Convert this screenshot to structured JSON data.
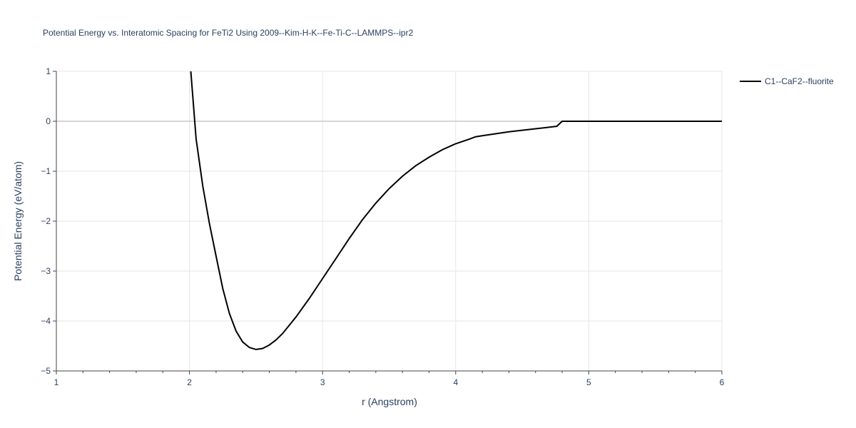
{
  "chart_data": {
    "type": "line",
    "title": "Potential Energy vs. Interatomic Spacing for FeTi2 Using 2009--Kim-H-K--Fe-Ti-C--LAMMPS--ipr2",
    "xlabel": "r (Angstrom)",
    "ylabel": "Potential Energy (eV/atom)",
    "xlim": [
      1,
      6
    ],
    "ylim": [
      -5,
      1
    ],
    "x_ticks": [
      1,
      2,
      3,
      4,
      5,
      6
    ],
    "x_tick_labels": [
      "1",
      "2",
      "3",
      "4",
      "5",
      "6"
    ],
    "x_minor_ticks": [
      1.2,
      1.4,
      1.6,
      1.8,
      2.2,
      2.4,
      2.6,
      2.8,
      3.2,
      3.4,
      3.6,
      3.8,
      4.2,
      4.4,
      4.6,
      4.8,
      5.2,
      5.4,
      5.6,
      5.8
    ],
    "y_ticks": [
      -5,
      -4,
      -3,
      -2,
      -1,
      0,
      1
    ],
    "y_tick_labels": [
      "−5",
      "−4",
      "−3",
      "−2",
      "−1",
      "0",
      "1"
    ],
    "grid": true,
    "legend_position": "top-right",
    "series": [
      {
        "name": "C1--CaF2--fluorite",
        "color": "#000000",
        "x": [
          2.01,
          2.05,
          2.1,
          2.15,
          2.2,
          2.25,
          2.3,
          2.35,
          2.4,
          2.45,
          2.5,
          2.55,
          2.6,
          2.65,
          2.7,
          2.8,
          2.9,
          3.0,
          3.1,
          3.2,
          3.3,
          3.4,
          3.5,
          3.6,
          3.7,
          3.8,
          3.9,
          4.0,
          4.1,
          4.15,
          4.2,
          4.3,
          4.4,
          4.5,
          4.6,
          4.7,
          4.76,
          4.78,
          4.8,
          4.9,
          5.0,
          5.5,
          6.0
        ],
        "y": [
          1.0,
          -0.35,
          -1.3,
          -2.05,
          -2.7,
          -3.35,
          -3.85,
          -4.2,
          -4.42,
          -4.53,
          -4.57,
          -4.55,
          -4.48,
          -4.38,
          -4.25,
          -3.92,
          -3.55,
          -3.15,
          -2.75,
          -2.35,
          -1.97,
          -1.64,
          -1.35,
          -1.1,
          -0.89,
          -0.72,
          -0.57,
          -0.45,
          -0.36,
          -0.31,
          -0.29,
          -0.25,
          -0.21,
          -0.18,
          -0.15,
          -0.12,
          -0.1,
          -0.05,
          0.0,
          0.0,
          0.0,
          0.0,
          0.0
        ]
      }
    ]
  }
}
